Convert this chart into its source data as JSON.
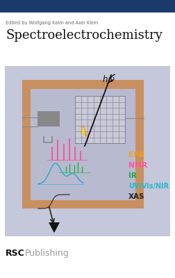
{
  "bg_color": "#ffffff",
  "top_bar_color": "#1b3a6b",
  "editor_text": "Edited by Wolfgang Kaim and Axel Klein",
  "title_text": "Spectroelectrochemistry",
  "cover_bg": "#c5c7da",
  "outer_frame_color": "#c89060",
  "inner_bg": "#b8bad0",
  "grid_line_color": "#888899",
  "epr_color": "#f5a020",
  "nmr_color": "#ff5599",
  "ir_color": "#22aa44",
  "uv_color": "#22bbcc",
  "xas_color": "#222222",
  "rsc_bold": "RSC",
  "rsc_normal": "Publishing",
  "hv_text": "h·ν"
}
